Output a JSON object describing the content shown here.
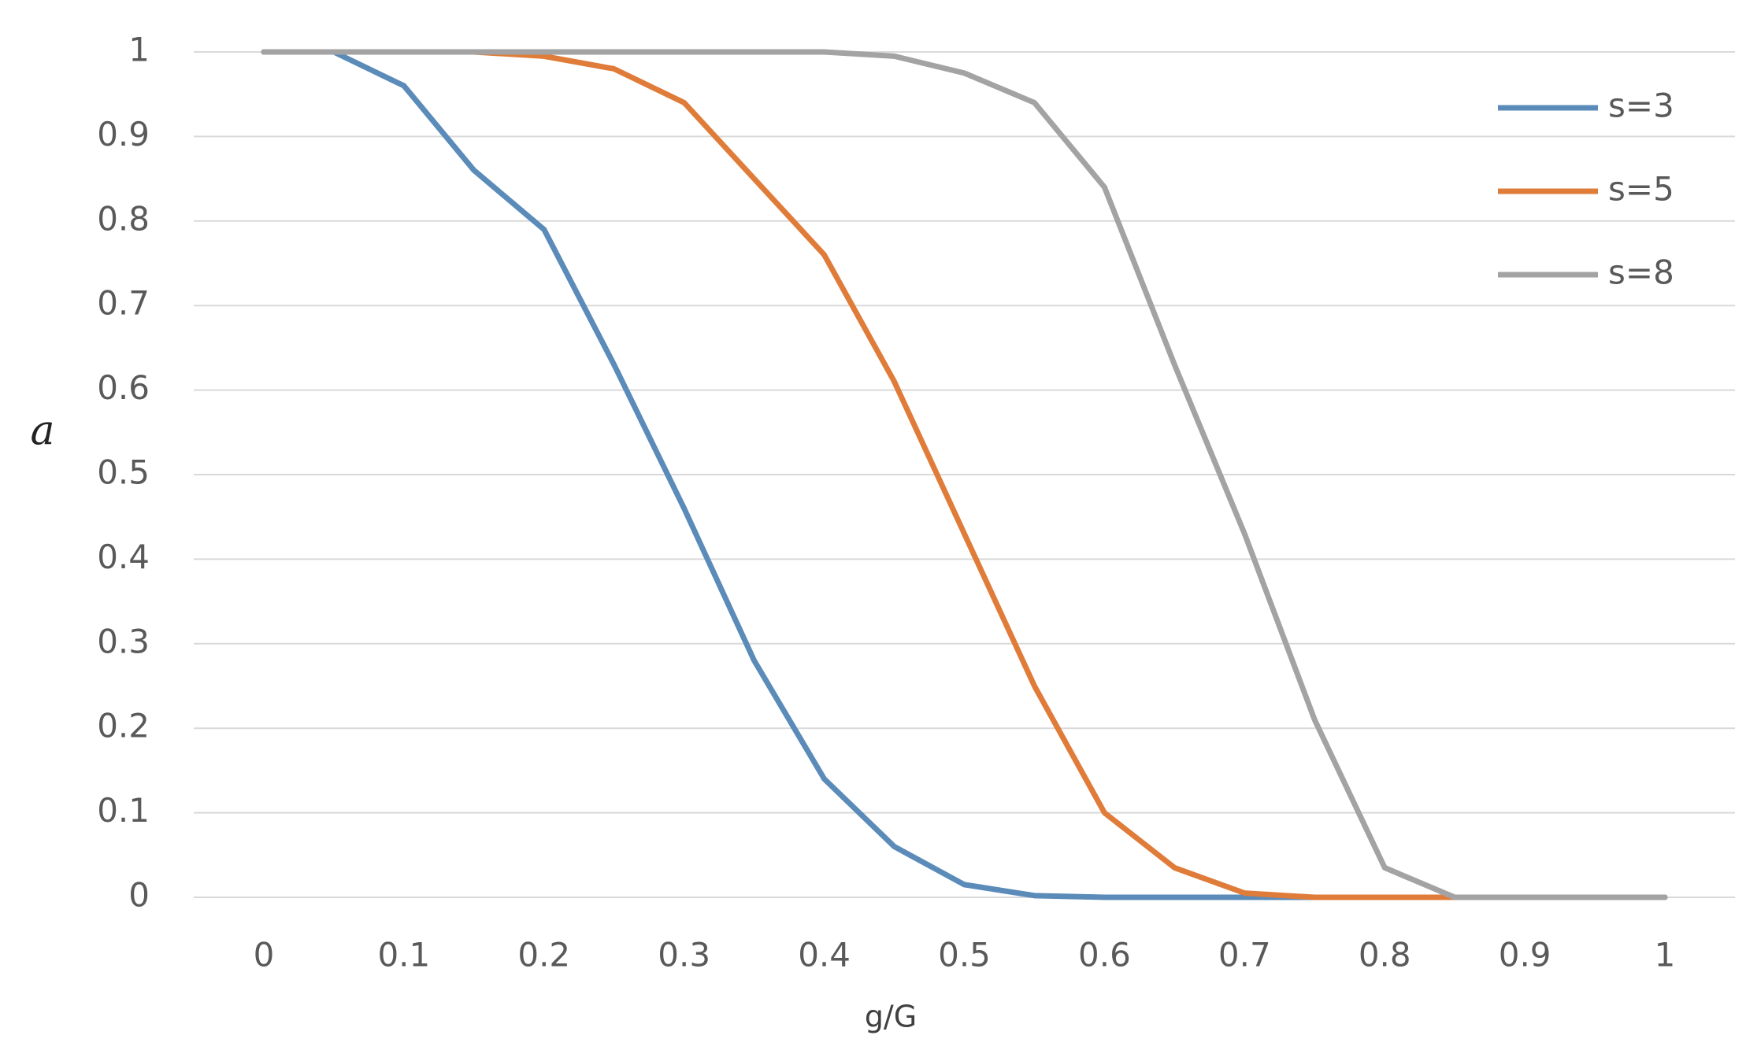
{
  "chart_data": {
    "type": "line",
    "xlabel": "g/G",
    "ylabel": "a",
    "x": [
      0,
      0.05,
      0.1,
      0.15,
      0.2,
      0.25,
      0.3,
      0.35,
      0.4,
      0.45,
      0.5,
      0.55,
      0.6,
      0.65,
      0.7,
      0.75,
      0.8,
      0.85,
      0.9,
      0.95,
      1
    ],
    "series": [
      {
        "name": "s=3",
        "color": "#5b8bb8",
        "values": [
          1,
          1,
          0.96,
          0.86,
          0.79,
          0.63,
          0.46,
          0.28,
          0.14,
          0.06,
          0.015,
          0.002,
          0,
          0,
          0,
          0,
          0,
          0,
          0,
          0,
          0
        ]
      },
      {
        "name": "s=5",
        "color": "#e07c3a",
        "values": [
          1,
          1,
          1,
          1,
          0.995,
          0.98,
          0.94,
          0.85,
          0.76,
          0.61,
          0.43,
          0.25,
          0.1,
          0.035,
          0.005,
          0,
          0,
          0,
          0,
          0,
          0
        ]
      },
      {
        "name": "s=8",
        "color": "#a3a3a3",
        "values": [
          1,
          1,
          1,
          1,
          1,
          1,
          1,
          1,
          1,
          0.995,
          0.975,
          0.94,
          0.84,
          0.63,
          0.43,
          0.21,
          0.035,
          0,
          0,
          0,
          0
        ]
      }
    ],
    "xlim": [
      -0.05,
      1.05
    ],
    "xticks": [
      0,
      0.1,
      0.2,
      0.3,
      0.4,
      0.5,
      0.6,
      0.7,
      0.8,
      0.9,
      1
    ],
    "ylim": [
      0,
      1
    ],
    "yticks": [
      0,
      0.1,
      0.2,
      0.3,
      0.4,
      0.5,
      0.6,
      0.7,
      0.8,
      0.9,
      1
    ],
    "grid": true,
    "legend": "upper right"
  }
}
